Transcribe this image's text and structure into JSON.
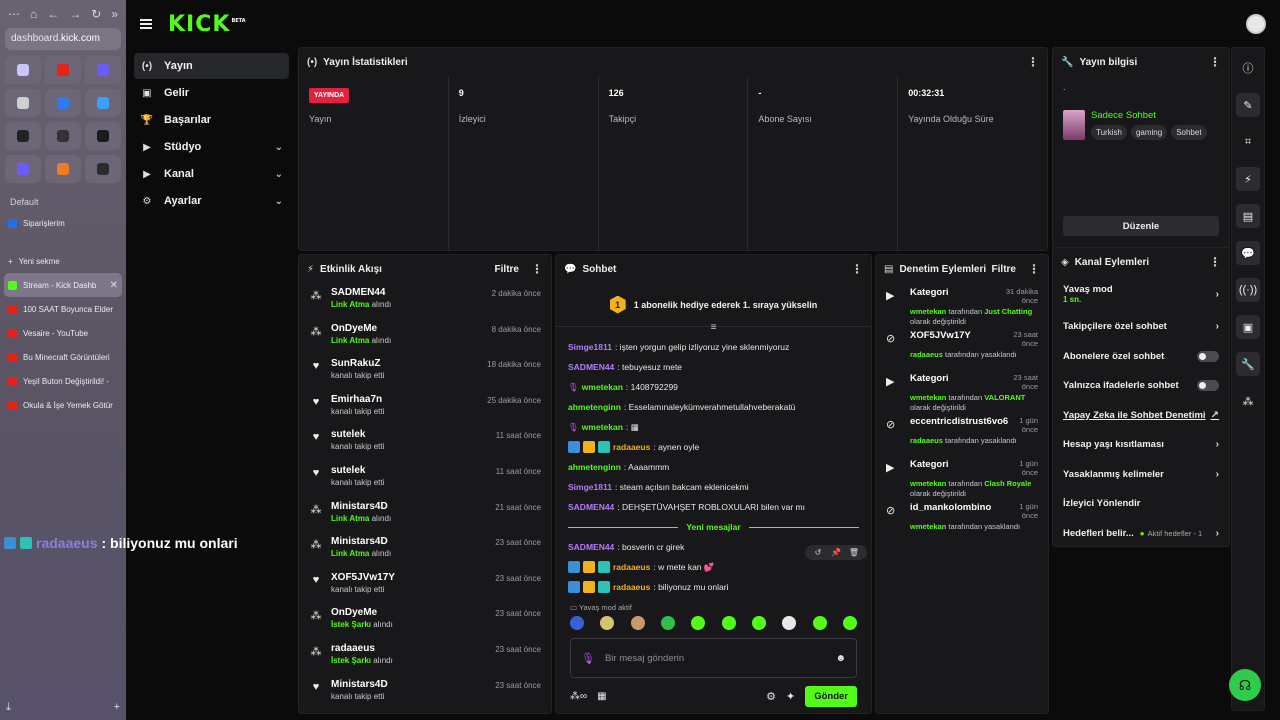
{
  "browser": {
    "url_prefix": "dashboard.",
    "url_host": "kick.com",
    "section_label": "Default",
    "pinned_item": "Siparişlerim",
    "new_tab": "Yeni sekme",
    "tabs": [
      {
        "label": "Stream - Kick Dashb",
        "color": "#53fc18",
        "active": true
      },
      {
        "label": "100 SAAT Boyunca Elder",
        "color": "#e62117"
      },
      {
        "label": "Vesaire - YouTube",
        "color": "#e62117"
      },
      {
        "label": "Bu Minecraft Görüntüleri",
        "color": "#e62117"
      },
      {
        "label": "Yeşil Buton Değiştirildi! -",
        "color": "#e62117"
      },
      {
        "label": "Okula & İşe Yemek Götür",
        "color": "#e62117"
      }
    ],
    "favorites": [
      "#c9c6ff",
      "#e62117",
      "#6b5cff",
      "#cfcfcf",
      "#2d7cf6",
      "#3aa0ff",
      "#222",
      "#333",
      "#1b1b1b",
      "#6c5cff",
      "#f07c22",
      "#2b2b2b"
    ]
  },
  "overlay": {
    "user": "radaaeus",
    "message": ": biliyonuz mu onlari"
  },
  "app": {
    "logo": "KICK",
    "logo_sup": "BETA"
  },
  "nav": [
    {
      "label": "Yayın",
      "icon": "(•)",
      "active": true,
      "chev": false
    },
    {
      "label": "Gelir",
      "icon": "▣",
      "chev": false
    },
    {
      "label": "Başarılar",
      "icon": "🏆",
      "chev": false
    },
    {
      "label": "Stüdyo",
      "icon": "▶",
      "chev": true
    },
    {
      "label": "Kanal",
      "icon": "▶",
      "chev": true
    },
    {
      "label": "Ayarlar",
      "icon": "⚙",
      "chev": true
    }
  ],
  "stats": {
    "title": "Yayın İstatistikleri",
    "items": [
      {
        "value": "YAYINDA",
        "label": "Yayın"
      },
      {
        "value": "9",
        "label": "İzleyici"
      },
      {
        "value": "126",
        "label": "Takipçi"
      },
      {
        "value": "-",
        "label": "Abone Sayısı"
      },
      {
        "value": "00:32:31",
        "label": "Yayında Olduğu Süre"
      }
    ]
  },
  "info": {
    "title": "Yayın bilgisi",
    "dot": ".",
    "stream_title": "Sadece Sohbet",
    "tags": [
      "Turkish",
      "gaming",
      "Sohbet"
    ],
    "edit": "Düzenle"
  },
  "activity": {
    "title": "Etkinlik Akışı",
    "filter": "Filtre",
    "items": [
      {
        "icon": "gift",
        "name": "SADMEN44",
        "green": "Link Atma",
        "desc": " alındı",
        "time": "2 dakika önce"
      },
      {
        "icon": "gift",
        "name": "OnDyeMe",
        "green": "Link Atma",
        "desc": " alındı",
        "time": "8 dakika önce"
      },
      {
        "icon": "heart",
        "name": "SunRakuZ",
        "green": "",
        "desc": "kanalı takip etti",
        "time": "18 dakika önce"
      },
      {
        "icon": "heart",
        "name": "Emirhaa7n",
        "green": "",
        "desc": "kanalı takip etti",
        "time": "25 dakika önce"
      },
      {
        "icon": "heart",
        "name": "sutelek",
        "green": "",
        "desc": "kanalı takip etti",
        "time": "11 saat önce"
      },
      {
        "icon": "heart",
        "name": "sutelek",
        "green": "",
        "desc": "kanalı takip etti",
        "time": "11 saat önce"
      },
      {
        "icon": "gift",
        "name": "Ministars4D",
        "green": "Link Atma",
        "desc": " alındı",
        "time": "21 saat önce"
      },
      {
        "icon": "gift",
        "name": "Ministars4D",
        "green": "Link Atma",
        "desc": " alındı",
        "time": "23 saat önce"
      },
      {
        "icon": "heart",
        "name": "XOF5JVw17Y",
        "green": "",
        "desc": "kanalı takip etti",
        "time": "23 saat önce"
      },
      {
        "icon": "gift",
        "name": "OnDyeMe",
        "green": "İstek Şarkı",
        "desc": " alındı",
        "time": "23 saat önce"
      },
      {
        "icon": "gift",
        "name": "radaaeus",
        "green": "İstek Şarkı",
        "desc": " alındı",
        "time": "23 saat önce"
      },
      {
        "icon": "heart",
        "name": "Ministars4D",
        "green": "",
        "desc": "kanalı takip etti",
        "time": "23 saat önce"
      }
    ]
  },
  "chat": {
    "title": "Sohbet",
    "pinned_number": "1",
    "pinned_text": "1 abonelik hediye ederek 1. sıraya yükselin",
    "messages": [
      {
        "user": "Simge1811",
        "color": "#b47cff",
        "text": ": işten yorgun gelip izliyoruz yine sklenmiyoruz",
        "badges": []
      },
      {
        "user": "SADMEN44",
        "color": "#b47cff",
        "text": ": tebuyesuz mete",
        "badges": []
      },
      {
        "user": "wmetekan",
        "color": "#53fc18",
        "text": ": 1408792299",
        "badges": [
          "mic"
        ]
      },
      {
        "user": "ahmetenginn",
        "color": "#53fc18",
        "text": ": Esselamınaleykümverahmetullahveberakatü",
        "badges": []
      },
      {
        "user": "wmetekan",
        "color": "#53fc18",
        "text": ": ▦",
        "badges": [
          "mic"
        ]
      },
      {
        "user": "radaaeus",
        "color": "#f2b11e",
        "text": ": aynen oyle",
        "badges": [
          "blue",
          "gold",
          "teal"
        ]
      },
      {
        "user": "ahmetenginn",
        "color": "#53fc18",
        "text": ": Aaaammm",
        "badges": []
      },
      {
        "user": "Simge1811",
        "color": "#b47cff",
        "text": ": steam açılsın bakcam eklenicekmi",
        "badges": []
      },
      {
        "user": "SADMEN44",
        "color": "#b47cff",
        "text": ": DEHŞETÜVAHŞET ROBLOXULARI bilen var mı",
        "badges": []
      }
    ],
    "new_messages": "Yeni mesajlar",
    "new": [
      {
        "user": "SADMEN44",
        "color": "#b47cff",
        "text": ": bosverin cr girek",
        "badges": []
      },
      {
        "user": "radaaeus",
        "color": "#f2b11e",
        "text": ": w mete kan 💕",
        "badges": [
          "blue",
          "gold",
          "teal"
        ]
      },
      {
        "user": "radaaeus",
        "color": "#f2b11e",
        "text": ": biliyonuz mu onlari",
        "badges": [
          "blue",
          "gold",
          "teal"
        ]
      }
    ],
    "slow_mode": "Yavaş mod aktif",
    "placeholder": "Bir mesaj gönderin",
    "send": "Gönder"
  },
  "mod": {
    "title": "Denetim Eylemleri",
    "filter": "Filtre",
    "items": [
      {
        "icon": "category",
        "name": "Kategori",
        "time": "31 dakika önce",
        "actor": "wmetekan",
        "desc1": " tarafından ",
        "target": "Just Chatting",
        "desc2": " olarak değiştirildi"
      },
      {
        "icon": "ban",
        "name": "XOF5JVw17Y",
        "time": "23 saat önce",
        "actor": "radaaeus",
        "desc1": " tarafından yasaklandı",
        "target": "",
        "desc2": ""
      },
      {
        "icon": "category",
        "name": "Kategori",
        "time": "23 saat önce",
        "actor": "wmetekan",
        "desc1": " tarafından ",
        "target": "VALORANT",
        "desc2": " olarak değiştirildi"
      },
      {
        "icon": "ban",
        "name": "eccentricdistrust6vo6",
        "time": "1 gün önce",
        "actor": "radaaeus",
        "desc1": " tarafından yasaklandı",
        "target": "",
        "desc2": ""
      },
      {
        "icon": "category",
        "name": "Kategori",
        "time": "1 gün önce",
        "actor": "wmetekan",
        "desc1": " tarafından ",
        "target": "Clash Royale",
        "desc2": " olarak değiştirildi"
      },
      {
        "icon": "ban",
        "name": "id_mankolombino",
        "time": "1 gün önce",
        "actor": "wmetekan",
        "desc1": " tarafından yasaklandı",
        "target": "",
        "desc2": ""
      }
    ]
  },
  "channel": {
    "title": "Kanal Eylemleri",
    "slow_mode": "Yavaş mod",
    "slow_value": "1 sn.",
    "followers_only": "Takipçilere özel sohbet",
    "subs_only": "Abonelere özel sohbet",
    "emotes_only": "Yalnızca ifadelerle sohbet",
    "ai_mod": "Yapay Zeka ile Sohbet Denetimi",
    "age_limits": "Hesap yaşı kısıtlaması",
    "banned_words": "Yasaklanmış kelimeler",
    "raid": "İzleyici Yönlendir",
    "goals": "Hedefleri belir...",
    "goals_sub": "Aktif hedefler - 1"
  }
}
